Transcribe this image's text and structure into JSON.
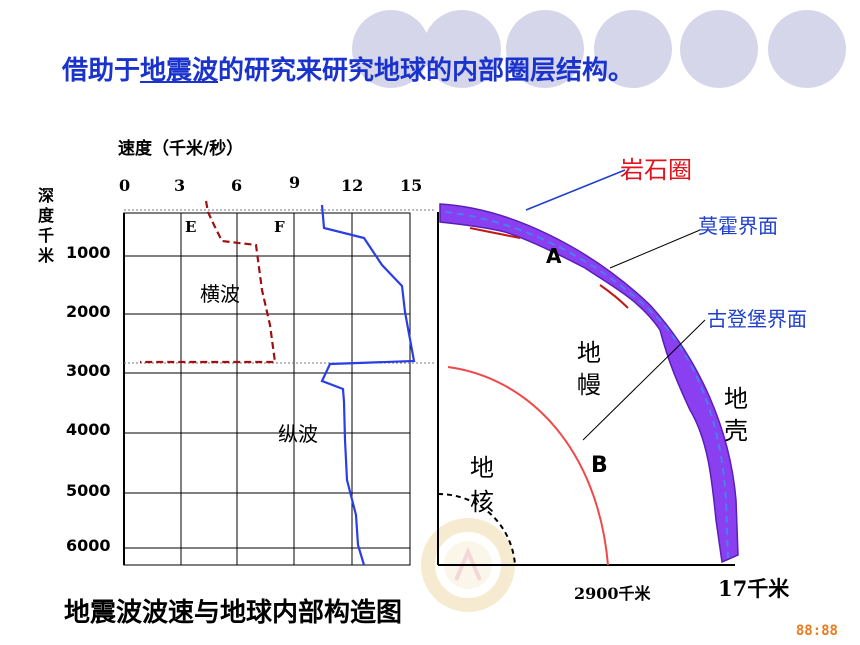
{
  "title": {
    "prefix": "借助于",
    "link": "地震波",
    "suffix": "的研究来研究地球的内部圈层结构。"
  },
  "chart": {
    "speed_axis_label": "速度（千米/秒）",
    "speed_ticks": [
      "0",
      "3",
      "6",
      "9",
      "12",
      "15"
    ],
    "depth_axis_label": "深度千米",
    "depth_ticks": [
      "1000",
      "2000",
      "3000",
      "4000",
      "5000",
      "6000"
    ],
    "label_e": "E",
    "label_f": "F",
    "s_wave_label": "横波",
    "p_wave_label": "纵波"
  },
  "earth": {
    "lithosphere": "岩石圈",
    "moho": "莫霍界面",
    "gutenberg": "古登堡界面",
    "mantle": "地幔",
    "crust": "地壳",
    "core": "地核",
    "point_a": "A",
    "point_b": "B",
    "depth_core": "2900千米",
    "depth_crust": "17千米"
  },
  "caption": "地震波波速与地球内部构造图",
  "clock": "88:88",
  "colors": {
    "title": "#1a33cc",
    "s_wave": "#a01010",
    "p_wave": "#2a3ee8",
    "crust_fill": "#8a3ff0",
    "red_label": "#e0141e",
    "blue_label": "#1f3fcc",
    "gutenberg_arc": "#ee4a4a"
  }
}
